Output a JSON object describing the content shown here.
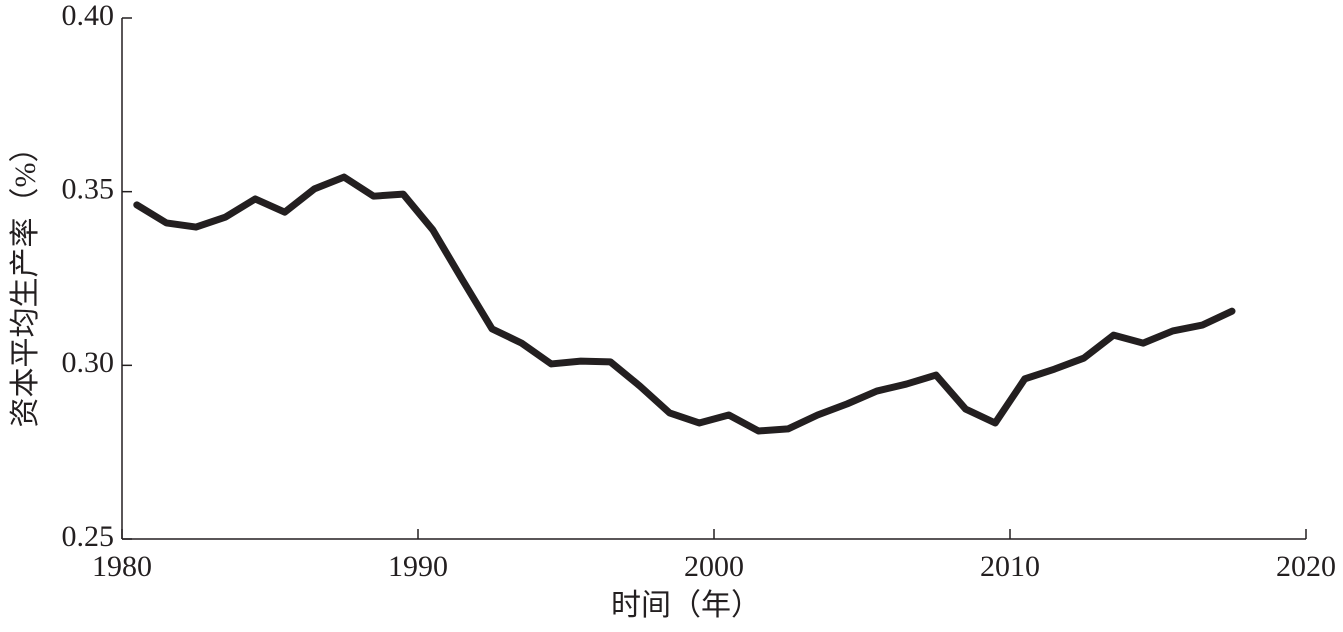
{
  "chart_data": {
    "type": "line",
    "xlabel": "时间（年）",
    "ylabel": "资本平均生产率（%）",
    "x": [
      1980.5,
      1981.5,
      1982.5,
      1983.5,
      1984.5,
      1985.5,
      1986.5,
      1987.5,
      1988.5,
      1989.5,
      1990.5,
      1991.5,
      1992.5,
      1993.5,
      1994.5,
      1995.5,
      1996.5,
      1997.5,
      1998.5,
      1999.5,
      2000.5,
      2001.5,
      2002.5,
      2003.5,
      2004.5,
      2005.5,
      2006.5,
      2007.5,
      2008.5,
      2009.5,
      2010.5,
      2011.5,
      2012.5,
      2013.5,
      2014.5,
      2015.5,
      2016.5,
      2017.5
    ],
    "series": [
      {
        "color": "#231f20",
        "values": [
          0.3462,
          0.341,
          0.3398,
          0.3427,
          0.3479,
          0.3441,
          0.3508,
          0.3542,
          0.3487,
          0.3493,
          0.339,
          0.3246,
          0.3105,
          0.3064,
          0.3004,
          0.3012,
          0.301,
          0.294,
          0.2863,
          0.2834,
          0.2857,
          0.2811,
          0.2817,
          0.2857,
          0.2889,
          0.2926,
          0.2946,
          0.2972,
          0.2874,
          0.2834,
          0.2961,
          0.2989,
          0.3021,
          0.3087,
          0.3064,
          0.3099,
          0.3116,
          0.3156
        ]
      }
    ],
    "xlim": [
      1980,
      2020
    ],
    "xticks": [
      1980,
      1990,
      2000,
      2010,
      2020
    ],
    "ylim": [
      0.25,
      0.4
    ],
    "yticks": [
      {
        "value": 0.25,
        "label": "0.25"
      },
      {
        "value": 0.3,
        "label": "0.30"
      },
      {
        "value": 0.35,
        "label": "0.35"
      },
      {
        "value": 0.4,
        "label": "0.40"
      }
    ]
  }
}
